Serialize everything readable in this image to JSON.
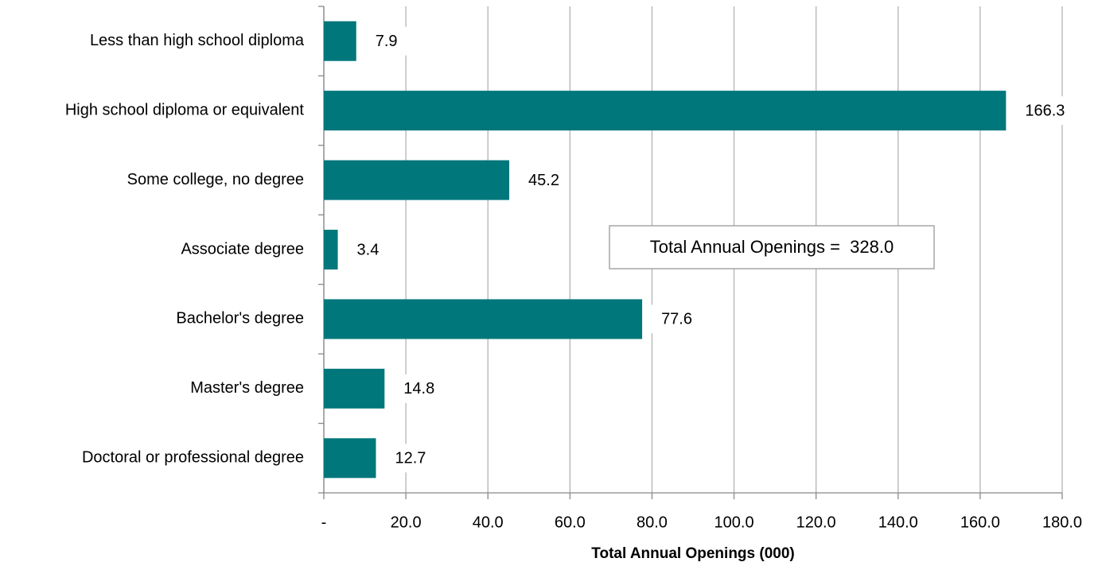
{
  "chart_data": {
    "type": "bar",
    "orientation": "horizontal",
    "x_label": "Total Annual Openings (000)",
    "annotation": "Total Annual Openings =  328.0",
    "categories": [
      "Less than high school diploma",
      "High school diploma or equivalent",
      "Some college, no degree",
      "Associate degree",
      "Bachelor's degree",
      "Master's degree",
      "Doctoral or professional degree"
    ],
    "values": [
      7.9,
      166.3,
      45.2,
      3.4,
      77.6,
      14.8,
      12.7
    ],
    "color": "#00777b",
    "xlim": [
      0,
      180
    ],
    "xticks": [
      {
        "value": 0,
        "label": "-"
      },
      {
        "value": 20,
        "label": "20.0"
      },
      {
        "value": 40,
        "label": "40.0"
      },
      {
        "value": 60,
        "label": "60.0"
      },
      {
        "value": 80,
        "label": "80.0"
      },
      {
        "value": 100,
        "label": "100.0"
      },
      {
        "value": 120,
        "label": "120.0"
      },
      {
        "value": 140,
        "label": "140.0"
      },
      {
        "value": 160,
        "label": "160.0"
      },
      {
        "value": 180,
        "label": "180.0"
      }
    ],
    "grid": true
  }
}
